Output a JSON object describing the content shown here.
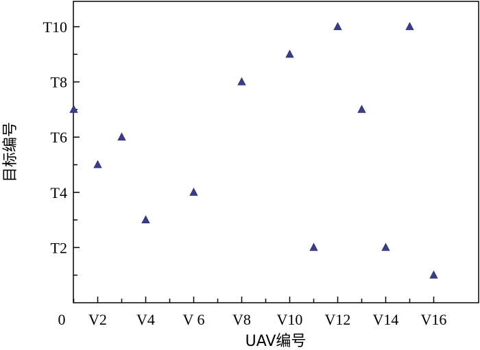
{
  "chart_data": {
    "type": "scatter",
    "xlabel": "UAV编号",
    "ylabel": "目标编号",
    "xlim": [
      0,
      17
    ],
    "ylim": [
      0,
      11
    ],
    "x_ticks": [
      {
        "value": 0,
        "label": "0"
      },
      {
        "value": 2,
        "label": "V2"
      },
      {
        "value": 4,
        "label": "V4"
      },
      {
        "value": 6,
        "label": "V 6"
      },
      {
        "value": 8,
        "label": "V8"
      },
      {
        "value": 10,
        "label": "V10"
      },
      {
        "value": 12,
        "label": "V12"
      },
      {
        "value": 14,
        "label": "V14"
      },
      {
        "value": 16,
        "label": "V16"
      }
    ],
    "x_minor_ticks": [
      1,
      3,
      5,
      7,
      9,
      11,
      13,
      15
    ],
    "y_ticks": [
      {
        "value": 2,
        "label": "T2"
      },
      {
        "value": 4,
        "label": "T4"
      },
      {
        "value": 6,
        "label": "T6"
      },
      {
        "value": 8,
        "label": "T8"
      },
      {
        "value": 10,
        "label": "T10"
      }
    ],
    "y_minor_ticks": [
      1,
      3,
      5,
      7,
      9
    ],
    "grid": false,
    "marker": "triangle",
    "marker_color": "#3a3d8c",
    "points": [
      {
        "x": 1,
        "y": 7
      },
      {
        "x": 2,
        "y": 5
      },
      {
        "x": 3,
        "y": 6
      },
      {
        "x": 4,
        "y": 3
      },
      {
        "x": 6,
        "y": 4
      },
      {
        "x": 8,
        "y": 8
      },
      {
        "x": 10,
        "y": 9
      },
      {
        "x": 11,
        "y": 2
      },
      {
        "x": 12,
        "y": 10
      },
      {
        "x": 13,
        "y": 7
      },
      {
        "x": 14,
        "y": 2
      },
      {
        "x": 15,
        "y": 10
      },
      {
        "x": 16,
        "y": 1
      }
    ]
  }
}
